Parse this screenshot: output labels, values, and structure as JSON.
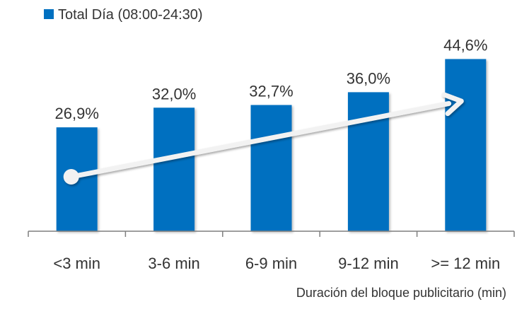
{
  "chart_data": {
    "type": "bar",
    "categories": [
      "<3 min",
      "3-6 min",
      "6-9 min",
      "9-12 min",
      ">= 12 min"
    ],
    "series": [
      {
        "name": "Total Día (08:00-24:30)",
        "values": [
          26.9,
          32.0,
          32.7,
          36.0,
          44.6
        ]
      }
    ],
    "data_labels": [
      "26,9%",
      "32,0%",
      "32,7%",
      "36,0%",
      "44,6%"
    ],
    "xlabel": "Duración del bloque publicitario (min)",
    "ylabel": "",
    "ylim": [
      0,
      50
    ],
    "grid": false,
    "legend_position": "top-left",
    "trend_arrow": true,
    "colors": {
      "bar": "#0070C0",
      "text": "#333333",
      "axis": "#7f7f7f",
      "arrow": "#f2f2f2"
    }
  }
}
